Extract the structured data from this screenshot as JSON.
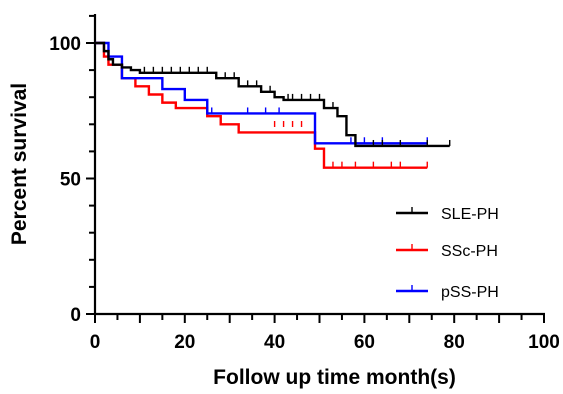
{
  "chart_data": {
    "type": "line",
    "xlabel": "Follow up time  month(s)",
    "ylabel": "Percent survival",
    "xlim": [
      0,
      100
    ],
    "ylim": [
      0,
      100
    ],
    "x_ticks": [
      "0",
      "20",
      "40",
      "60",
      "80",
      "100"
    ],
    "y_ticks": [
      "0",
      "50",
      "100"
    ],
    "legend_position": "right",
    "series": [
      {
        "name": "SLE-PH",
        "color": "#000000",
        "steps": [
          [
            0,
            100
          ],
          [
            2,
            97
          ],
          [
            3,
            94
          ],
          [
            4,
            92
          ],
          [
            6,
            91
          ],
          [
            8,
            90
          ],
          [
            10,
            89
          ],
          [
            27,
            87
          ],
          [
            32,
            84
          ],
          [
            37,
            82
          ],
          [
            40,
            80
          ],
          [
            42,
            79
          ],
          [
            51,
            76
          ],
          [
            54,
            73
          ],
          [
            56,
            66
          ],
          [
            58,
            62
          ],
          [
            79,
            62
          ]
        ],
        "censored": [
          [
            11,
            89
          ],
          [
            13,
            89
          ],
          [
            15,
            89
          ],
          [
            17,
            89
          ],
          [
            19,
            89
          ],
          [
            21,
            89
          ],
          [
            23,
            89
          ],
          [
            25,
            89
          ],
          [
            29,
            87
          ],
          [
            31,
            87
          ],
          [
            34,
            84
          ],
          [
            36,
            84
          ],
          [
            39,
            82
          ],
          [
            43,
            79
          ],
          [
            44,
            79
          ],
          [
            46,
            79
          ],
          [
            48,
            79
          ],
          [
            50,
            79
          ],
          [
            53,
            76
          ],
          [
            62,
            62
          ],
          [
            64,
            62
          ],
          [
            68,
            62
          ],
          [
            74,
            62
          ],
          [
            79,
            62
          ]
        ]
      },
      {
        "name": "SSc-PH",
        "color": "#ff0000",
        "steps": [
          [
            0,
            100
          ],
          [
            2,
            95
          ],
          [
            3,
            92
          ],
          [
            6,
            87
          ],
          [
            9,
            84
          ],
          [
            12,
            81
          ],
          [
            15,
            78
          ],
          [
            18,
            76
          ],
          [
            25,
            73
          ],
          [
            28,
            70
          ],
          [
            32,
            67
          ],
          [
            49,
            61
          ],
          [
            51,
            54
          ],
          [
            74,
            54
          ]
        ],
        "censored": [
          [
            40,
            69
          ],
          [
            42,
            69
          ],
          [
            44,
            69
          ],
          [
            46,
            69
          ],
          [
            53,
            54
          ],
          [
            55,
            54
          ],
          [
            58,
            54
          ],
          [
            62,
            54
          ],
          [
            66,
            54
          ],
          [
            68,
            54
          ],
          [
            74,
            54
          ]
        ]
      },
      {
        "name": "pSS-PH",
        "color": "#0000ff",
        "steps": [
          [
            0,
            100
          ],
          [
            3,
            95
          ],
          [
            6,
            87
          ],
          [
            15,
            83
          ],
          [
            20,
            79
          ],
          [
            25,
            74
          ],
          [
            49,
            63
          ],
          [
            74,
            63
          ]
        ],
        "censored": [
          [
            26,
            74
          ],
          [
            34,
            74
          ],
          [
            38,
            74
          ],
          [
            41,
            74
          ],
          [
            57,
            63
          ],
          [
            60,
            63
          ],
          [
            64,
            63
          ],
          [
            74,
            63
          ]
        ]
      }
    ]
  }
}
